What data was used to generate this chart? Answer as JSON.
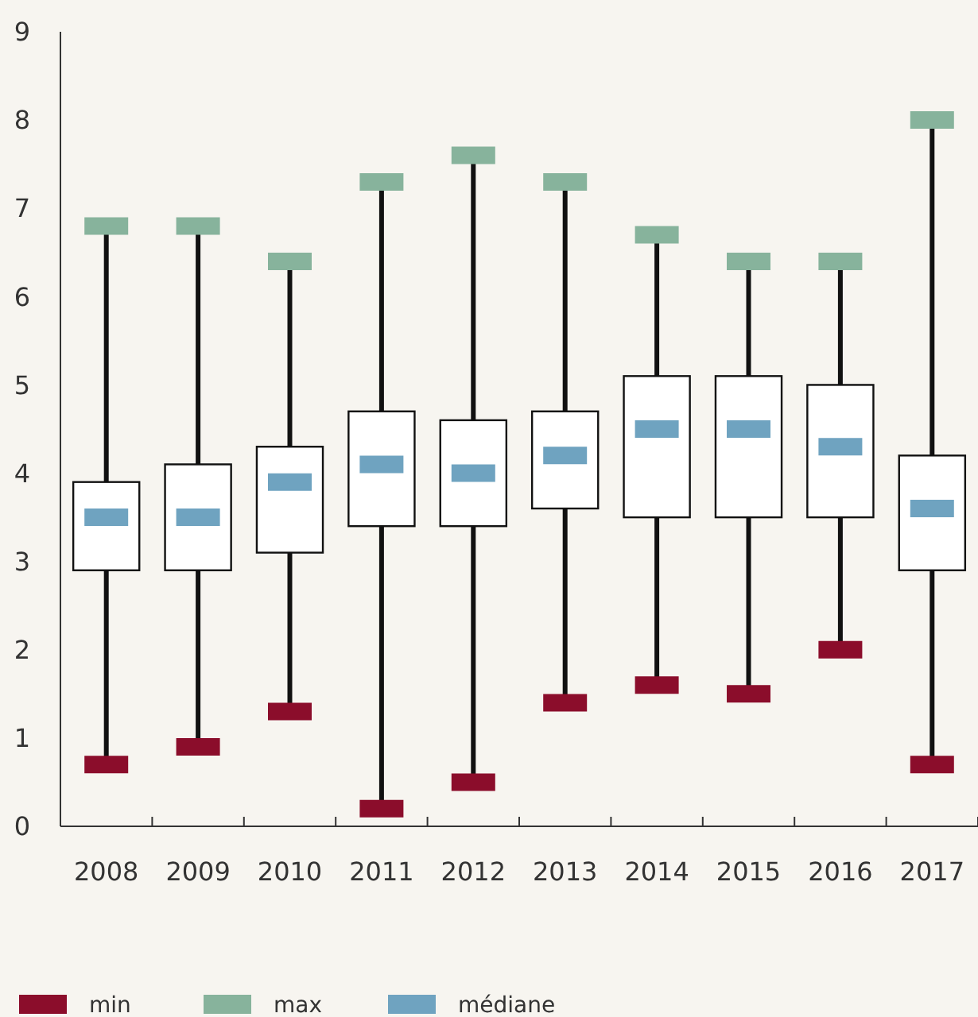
{
  "chart_data": {
    "type": "box",
    "categories": [
      "2008",
      "2009",
      "2010",
      "2011",
      "2012",
      "2013",
      "2014",
      "2015",
      "2016",
      "2017"
    ],
    "series": [
      {
        "type": "scatter",
        "name": "min",
        "color": "#8b0d2b",
        "values": [
          0.7,
          0.9,
          1.3,
          0.2,
          0.5,
          1.4,
          1.6,
          1.5,
          2.0,
          0.7
        ]
      },
      {
        "type": "scatter",
        "name": "max",
        "color": "#87b39c",
        "values": [
          6.8,
          6.8,
          6.4,
          7.3,
          7.6,
          7.3,
          6.7,
          6.4,
          6.4,
          8.0
        ]
      },
      {
        "type": "scatter",
        "name": "médiane",
        "color": "#6fa3c0",
        "values": [
          3.5,
          3.5,
          3.9,
          4.1,
          4.0,
          4.2,
          4.5,
          4.5,
          4.3,
          3.6
        ]
      },
      {
        "color": "#ffffff",
        "boxes": [
          {
            "low": 0.7,
            "q1": 2.9,
            "q3": 3.9,
            "high": 6.8
          },
          {
            "low": 0.9,
            "q1": 2.9,
            "q3": 4.1,
            "high": 6.8
          },
          {
            "low": 1.3,
            "q1": 3.1,
            "q3": 4.3,
            "high": 6.4
          },
          {
            "low": 0.2,
            "q1": 3.4,
            "q3": 4.7,
            "high": 7.3
          },
          {
            "low": 0.5,
            "q1": 3.4,
            "q3": 4.6,
            "high": 7.6
          },
          {
            "low": 1.4,
            "q1": 3.6,
            "q3": 4.7,
            "high": 7.3
          },
          {
            "low": 1.6,
            "q1": 3.5,
            "q3": 5.1,
            "high": 6.7
          },
          {
            "low": 1.5,
            "q1": 3.5,
            "q3": 5.1,
            "high": 6.4
          },
          {
            "low": 2.0,
            "q1": 3.5,
            "q3": 5.0,
            "high": 6.4
          },
          {
            "low": 0.7,
            "q1": 2.9,
            "q3": 4.2,
            "high": 8.0
          }
        ]
      }
    ],
    "ylim": [
      0,
      9
    ],
    "yticks": [
      0,
      1,
      2,
      3,
      4,
      5,
      6,
      7,
      8,
      9
    ],
    "grid": false,
    "legend": "bottom",
    "marker": "square"
  }
}
